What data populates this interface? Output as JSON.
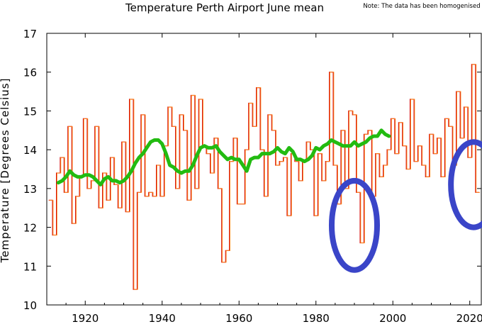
{
  "chart_data": {
    "type": "line",
    "title": "Temperature Perth Airport June mean",
    "note": "Note: The data has been homogenised",
    "ylabel": "Temperature [Degrees Celsius]",
    "xlabel": "",
    "xlim": [
      1910,
      2023
    ],
    "ylim": [
      10,
      17
    ],
    "x_ticks": [
      1920,
      1940,
      1960,
      1980,
      2000,
      2020
    ],
    "y_ticks": [
      10,
      11,
      12,
      13,
      14,
      15,
      16,
      17
    ],
    "grid": false,
    "legend": "none",
    "colors": {
      "raw_red": "#d40000",
      "raw_orange": "#ff9020",
      "smoothed": "#22bb11",
      "highlight": "#3a45c8"
    },
    "years": [
      1911,
      1912,
      1913,
      1914,
      1915,
      1916,
      1917,
      1918,
      1919,
      1920,
      1921,
      1922,
      1923,
      1924,
      1925,
      1926,
      1927,
      1928,
      1929,
      1930,
      1931,
      1932,
      1933,
      1934,
      1935,
      1936,
      1937,
      1938,
      1939,
      1940,
      1941,
      1942,
      1943,
      1944,
      1945,
      1946,
      1947,
      1948,
      1949,
      1950,
      1951,
      1952,
      1953,
      1954,
      1955,
      1956,
      1957,
      1958,
      1959,
      1960,
      1961,
      1962,
      1963,
      1964,
      1965,
      1966,
      1967,
      1968,
      1969,
      1970,
      1971,
      1972,
      1973,
      1974,
      1975,
      1976,
      1977,
      1978,
      1979,
      1980,
      1981,
      1982,
      1983,
      1984,
      1985,
      1986,
      1987,
      1988,
      1989,
      1990,
      1991,
      1992,
      1993,
      1994,
      1995,
      1996,
      1997,
      1998,
      1999,
      2000,
      2001,
      2002,
      2003,
      2004,
      2005,
      2006,
      2007,
      2008,
      2009,
      2010,
      2011,
      2012,
      2013,
      2014,
      2015,
      2016,
      2017,
      2018,
      2019,
      2020,
      2021,
      2022
    ],
    "series": [
      {
        "values": [
          12.7,
          11.8,
          13.4,
          13.8,
          12.9,
          14.6,
          12.1,
          12.8,
          13.3,
          14.8,
          13.0,
          13.2,
          14.6,
          12.5,
          13.4,
          12.7,
          13.8,
          13.1,
          12.5,
          14.2,
          12.4,
          15.3,
          10.4,
          12.9,
          14.9,
          12.8,
          12.9,
          12.8,
          13.6,
          12.8,
          14.1,
          15.1,
          14.6,
          13.0,
          14.9,
          14.5,
          12.7,
          15.4,
          13.0,
          15.3,
          14.1,
          13.9,
          13.4,
          14.3,
          13.0,
          11.1,
          11.4,
          13.7,
          14.3,
          12.6,
          12.6,
          14.0,
          15.2,
          14.6,
          15.6,
          14.0,
          12.8,
          14.9,
          14.5,
          13.6,
          13.7,
          13.8,
          12.3,
          13.9,
          13.7,
          13.2,
          13.7,
          14.2,
          14.0,
          12.3,
          13.9,
          13.2,
          13.7,
          16.0,
          13.6,
          12.6,
          14.5,
          13.0,
          15.0,
          14.9,
          12.9,
          11.6,
          14.4,
          14.5,
          12.8,
          13.9,
          13.3,
          13.6,
          14.0,
          14.8,
          13.9,
          14.7,
          14.1,
          13.5,
          15.3,
          13.7,
          14.1,
          13.6,
          13.3,
          14.4,
          13.9,
          14.3,
          13.3,
          14.8,
          14.6,
          13.6,
          15.5,
          14.3,
          15.1,
          13.8,
          16.2,
          12.9
        ]
      },
      {
        "values": [
          13.15,
          13.2,
          13.3,
          13.45,
          13.35,
          13.3,
          13.3,
          13.35,
          13.35,
          13.3,
          13.2,
          13.1,
          13.25,
          13.3,
          13.2,
          13.2,
          13.15,
          13.2,
          13.3,
          13.45,
          13.65,
          13.8,
          13.9,
          14.05,
          14.2,
          14.25,
          14.25,
          14.15,
          13.9,
          13.6,
          13.55,
          13.45,
          13.4,
          13.45,
          13.45,
          13.6,
          13.85,
          14.05,
          14.1,
          14.05,
          14.05,
          14.1,
          13.95,
          13.85,
          13.75,
          13.8,
          13.75,
          13.75,
          13.6,
          13.45,
          13.75,
          13.8,
          13.8,
          13.9,
          13.9,
          13.9,
          13.95,
          14.05,
          13.95,
          13.9,
          14.05,
          13.95,
          13.75,
          13.75,
          13.7,
          13.75,
          13.85,
          14.05,
          14.0,
          14.1,
          14.15,
          14.25,
          14.2,
          14.15,
          14.1,
          14.1,
          14.1,
          14.2,
          14.1,
          14.15,
          14.2,
          14.3,
          14.35,
          14.35,
          14.5,
          14.4,
          14.35
        ],
        "start_year": 1913
      }
    ],
    "annotations": [
      {
        "shape": "ellipse",
        "around_year": 1990,
        "y_range": [
          10.9,
          13.2
        ]
      },
      {
        "shape": "ellipse",
        "around_year": 2021,
        "y_range": [
          12.0,
          14.2
        ]
      }
    ]
  }
}
